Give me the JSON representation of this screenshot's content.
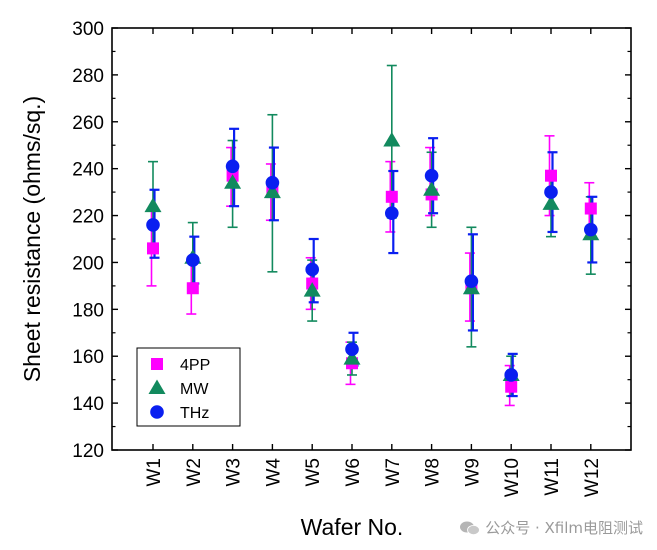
{
  "chart_data": {
    "type": "scatter",
    "title": "",
    "xlabel": "Wafer No.",
    "ylabel": "Sheet resistance (ohms/sq.)",
    "categories": [
      "W1",
      "W2",
      "W3",
      "W4",
      "W5",
      "W6",
      "W7",
      "W8",
      "W9",
      "W10",
      "W11",
      "W12"
    ],
    "ylim": [
      120,
      300
    ],
    "yticks": [
      120,
      140,
      160,
      180,
      200,
      220,
      240,
      260,
      280,
      300
    ],
    "legend_position": "bottom-left",
    "grid": false,
    "series": [
      {
        "name": "4PP",
        "marker": "square",
        "color": "#ff00ff",
        "values": [
          206,
          189,
          237,
          230,
          191,
          157,
          228,
          229,
          189,
          147,
          237,
          223
        ],
        "err_low": [
          190,
          178,
          224,
          218,
          180,
          148,
          213,
          220,
          175,
          139,
          220,
          210
        ],
        "err_high": [
          222,
          200,
          249,
          242,
          202,
          166,
          243,
          249,
          204,
          156,
          254,
          234
        ]
      },
      {
        "name": "MW",
        "marker": "triangle",
        "color": "#128a5e",
        "values": [
          224,
          202,
          234,
          230,
          188,
          159,
          252,
          231,
          189,
          152,
          225,
          212
        ],
        "err_low": [
          205,
          187,
          215,
          196,
          175,
          152,
          219,
          215,
          164,
          143,
          211,
          195
        ],
        "err_high": [
          243,
          217,
          252,
          263,
          201,
          166,
          284,
          247,
          215,
          160,
          239,
          228
        ]
      },
      {
        "name": "THz",
        "marker": "circle",
        "color": "#0a1ff0",
        "values": [
          216,
          201,
          241,
          234,
          197,
          163,
          221,
          237,
          192,
          152,
          230,
          214
        ],
        "err_low": [
          202,
          191,
          224,
          218,
          183,
          156,
          204,
          221,
          171,
          143,
          213,
          200
        ],
        "err_high": [
          231,
          211,
          257,
          249,
          210,
          170,
          239,
          253,
          212,
          161,
          247,
          228
        ]
      }
    ]
  },
  "watermark": {
    "text": "公众号 · Xfilm电阻测试",
    "icon": "wechat-icon"
  }
}
